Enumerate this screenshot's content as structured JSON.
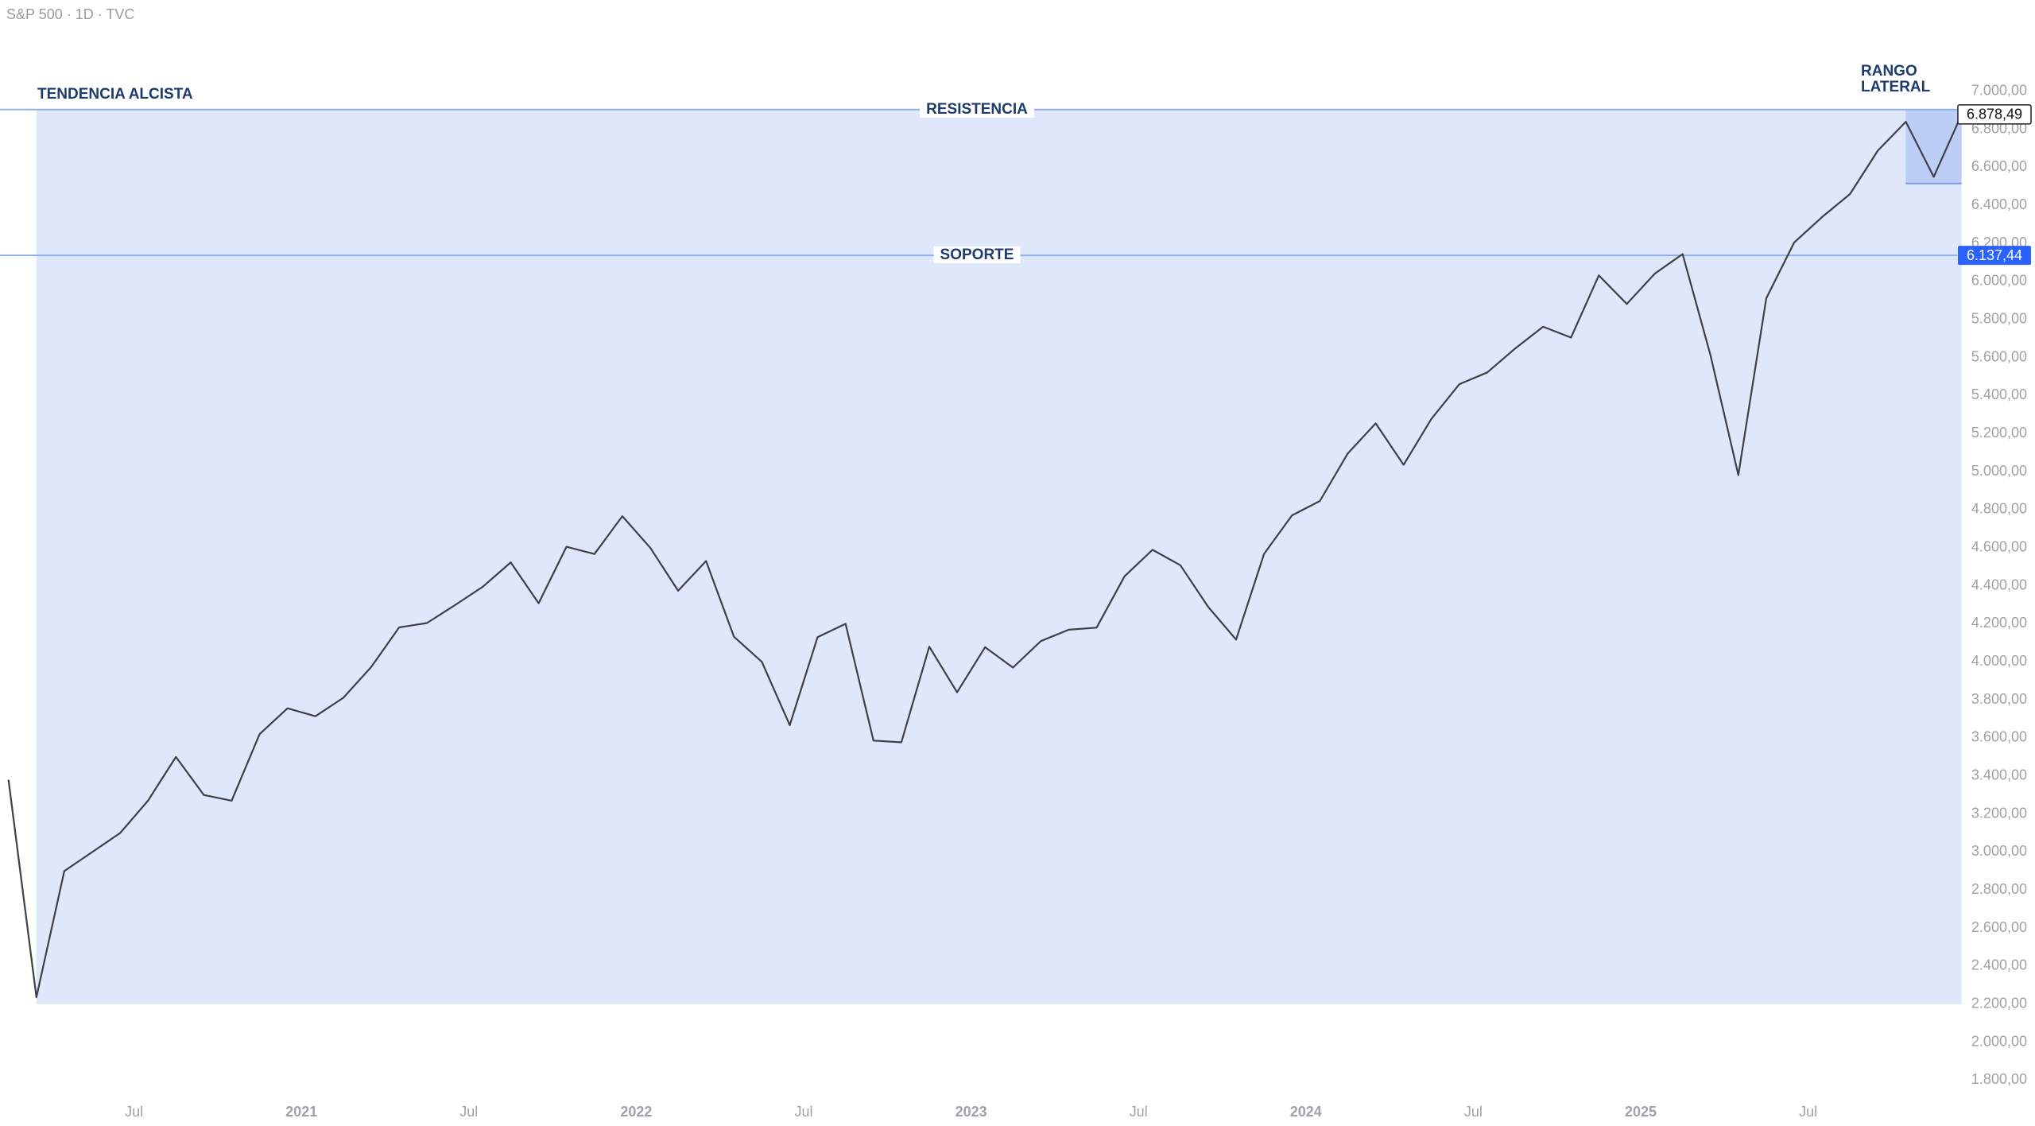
{
  "chart_data": {
    "type": "line",
    "title": "S&P 500 · 1D · TVC",
    "color": "#3f3f46",
    "x": [
      "2020-02",
      "2020-03",
      "2020-04",
      "2020-05",
      "2020-06",
      "2020-07",
      "2020-08",
      "2020-09",
      "2020-10",
      "2020-11",
      "2020-12",
      "2021-01",
      "2021-02",
      "2021-03",
      "2021-04",
      "2021-05",
      "2021-06",
      "2021-07",
      "2021-08",
      "2021-09",
      "2021-10",
      "2021-11",
      "2021-12",
      "2022-01",
      "2022-02",
      "2022-03",
      "2022-04",
      "2022-05",
      "2022-06",
      "2022-07",
      "2022-08",
      "2022-09",
      "2022-10",
      "2022-11",
      "2022-12",
      "2023-01",
      "2023-02",
      "2023-03",
      "2023-04",
      "2023-05",
      "2023-06",
      "2023-07",
      "2023-08",
      "2023-09",
      "2023-10",
      "2023-11",
      "2023-12",
      "2024-01",
      "2024-02",
      "2024-03",
      "2024-04",
      "2024-05",
      "2024-06",
      "2024-07",
      "2024-08",
      "2024-09",
      "2024-10",
      "2024-11",
      "2024-12",
      "2025-01",
      "2025-02",
      "2025-03",
      "2025-04",
      "2025-05",
      "2025-06",
      "2025-07",
      "2025-08",
      "2025-09",
      "2025-10",
      "2025-11",
      "2025-12"
    ],
    "values": [
      3380,
      2237,
      2900,
      3000,
      3100,
      3270,
      3500,
      3300,
      3270,
      3620,
      3756,
      3714,
      3811,
      3973,
      4181,
      4204,
      4298,
      4395,
      4523,
      4308,
      4605,
      4567,
      4766,
      4600,
      4374,
      4530,
      4132,
      4000,
      3667,
      4130,
      4200,
      3586,
      3577,
      4080,
      3840,
      4077,
      3970,
      4109,
      4169,
      4180,
      4450,
      4589,
      4508,
      4288,
      4117,
      4568,
      4770,
      4846,
      5096,
      5254,
      5036,
      5278,
      5460,
      5522,
      5648,
      5762,
      5705,
      6032,
      5882,
      6041,
      6144,
      5612,
      4982,
      5912,
      6205,
      6339,
      6460,
      6688,
      6840,
      6550,
      6878.49
    ],
    "last_price": {
      "value": 6878.49,
      "label": "6.878,49"
    },
    "ylim": [
      1710,
      7480
    ],
    "yticks": [
      {
        "value": 1800,
        "label": "1.800,00"
      },
      {
        "value": 2000,
        "label": "2.000,00"
      },
      {
        "value": 2200,
        "label": "2.200,00"
      },
      {
        "value": 2400,
        "label": "2.400,00"
      },
      {
        "value": 2600,
        "label": "2.600,00"
      },
      {
        "value": 2800,
        "label": "2.800,00"
      },
      {
        "value": 3000,
        "label": "3.000,00"
      },
      {
        "value": 3200,
        "label": "3.200,00"
      },
      {
        "value": 3400,
        "label": "3.400,00"
      },
      {
        "value": 3600,
        "label": "3.600,00"
      },
      {
        "value": 3800,
        "label": "3.800,00"
      },
      {
        "value": 4000,
        "label": "4.000,00"
      },
      {
        "value": 4200,
        "label": "4.200,00"
      },
      {
        "value": 4400,
        "label": "4.400,00"
      },
      {
        "value": 4600,
        "label": "4.600,00"
      },
      {
        "value": 4800,
        "label": "4.800,00"
      },
      {
        "value": 5000,
        "label": "5.000,00"
      },
      {
        "value": 5200,
        "label": "5.200,00"
      },
      {
        "value": 5400,
        "label": "5.400,00"
      },
      {
        "value": 5600,
        "label": "5.600,00"
      },
      {
        "value": 5800,
        "label": "5.800,00"
      },
      {
        "value": 6000,
        "label": "6.000,00"
      },
      {
        "value": 6200,
        "label": "6.200,00"
      },
      {
        "value": 6400,
        "label": "6.400,00"
      },
      {
        "value": 6600,
        "label": "6.600,00"
      },
      {
        "value": 6800,
        "label": "6.800,00"
      },
      {
        "value": 7000,
        "label": "7.000,00"
      }
    ],
    "xticks": [
      {
        "value": "2020-07",
        "label": "Jul"
      },
      {
        "value": "2021-01",
        "label": "2021"
      },
      {
        "value": "2021-07",
        "label": "Jul"
      },
      {
        "value": "2022-01",
        "label": "2022"
      },
      {
        "value": "2022-07",
        "label": "Jul"
      },
      {
        "value": "2023-01",
        "label": "2023"
      },
      {
        "value": "2023-07",
        "label": "Jul"
      },
      {
        "value": "2024-01",
        "label": "2024"
      },
      {
        "value": "2024-07",
        "label": "Jul"
      },
      {
        "value": "2025-01",
        "label": "2025"
      },
      {
        "value": "2025-07",
        "label": "Jul"
      }
    ],
    "levels": [
      {
        "name": "RESISTENCIA",
        "value": 6904
      },
      {
        "name": "SOPORTE",
        "value": 6137.44,
        "label": "6.137,44"
      }
    ],
    "zones": [
      {
        "name": "TENDENCIA ALCISTA",
        "x_range": [
          "2020-03",
          "2025-12"
        ],
        "y_range": [
          2200,
          6904
        ]
      },
      {
        "name": "RANGO LATERAL",
        "x_range": [
          "2025-10",
          "2025-12"
        ],
        "y_range": [
          6515,
          6904
        ]
      }
    ]
  }
}
